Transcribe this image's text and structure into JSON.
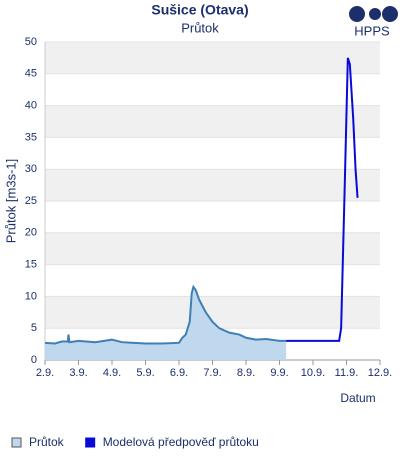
{
  "chart_data": {
    "type": "line",
    "title": "Sušice (Otava)",
    "subtitle": "Průtok",
    "logo_text": "HPPS",
    "y_label": "Průtok [m3s-1]",
    "x_label": "Datum",
    "xlim": [
      2,
      12
    ],
    "xticks": [
      {
        "value": 2,
        "label": "2.9."
      },
      {
        "value": 3,
        "label": "3.9."
      },
      {
        "value": 4,
        "label": "4.9."
      },
      {
        "value": 5,
        "label": "5.9."
      },
      {
        "value": 6,
        "label": "6.9."
      },
      {
        "value": 7,
        "label": "7.9."
      },
      {
        "value": 8,
        "label": "8.9."
      },
      {
        "value": 9,
        "label": "9.9."
      },
      {
        "value": 10,
        "label": "10.9."
      },
      {
        "value": 11,
        "label": "11.9."
      },
      {
        "value": 12,
        "label": "12.9."
      }
    ],
    "ylim": [
      0,
      50
    ],
    "yticks": [
      0,
      5,
      10,
      15,
      20,
      25,
      30,
      35,
      40,
      45,
      50
    ],
    "grid": true,
    "series": [
      {
        "name": "Průtok",
        "color": "#3f7fb5",
        "area": true,
        "area_color": "#bfd8ee",
        "x": [
          2.0,
          2.3,
          2.5,
          2.68,
          2.7,
          2.73,
          3.0,
          3.5,
          4.0,
          4.3,
          5.0,
          5.5,
          6.0,
          6.1,
          6.2,
          6.32,
          6.38,
          6.43,
          6.5,
          6.6,
          6.8,
          7.0,
          7.2,
          7.5,
          7.8,
          8.0,
          8.3,
          8.6,
          9.0,
          9.2
        ],
        "values": [
          2.7,
          2.6,
          2.9,
          2.9,
          4.0,
          2.8,
          3.0,
          2.8,
          3.2,
          2.8,
          2.6,
          2.6,
          2.7,
          3.5,
          4.0,
          6.0,
          10.5,
          11.5,
          11.0,
          9.5,
          7.5,
          6.0,
          5.0,
          4.3,
          4.0,
          3.5,
          3.2,
          3.3,
          3.0,
          3.0
        ]
      },
      {
        "name": "Modelová předpověď průtoku",
        "color": "#0a0ad8",
        "area": false,
        "x": [
          9.2,
          10.0,
          10.78,
          10.84,
          10.95,
          11.04,
          11.1,
          11.2,
          11.27,
          11.33
        ],
        "values": [
          3.0,
          3.0,
          3.0,
          5.0,
          28.0,
          47.5,
          46.5,
          38.0,
          30.0,
          25.5
        ]
      }
    ]
  }
}
